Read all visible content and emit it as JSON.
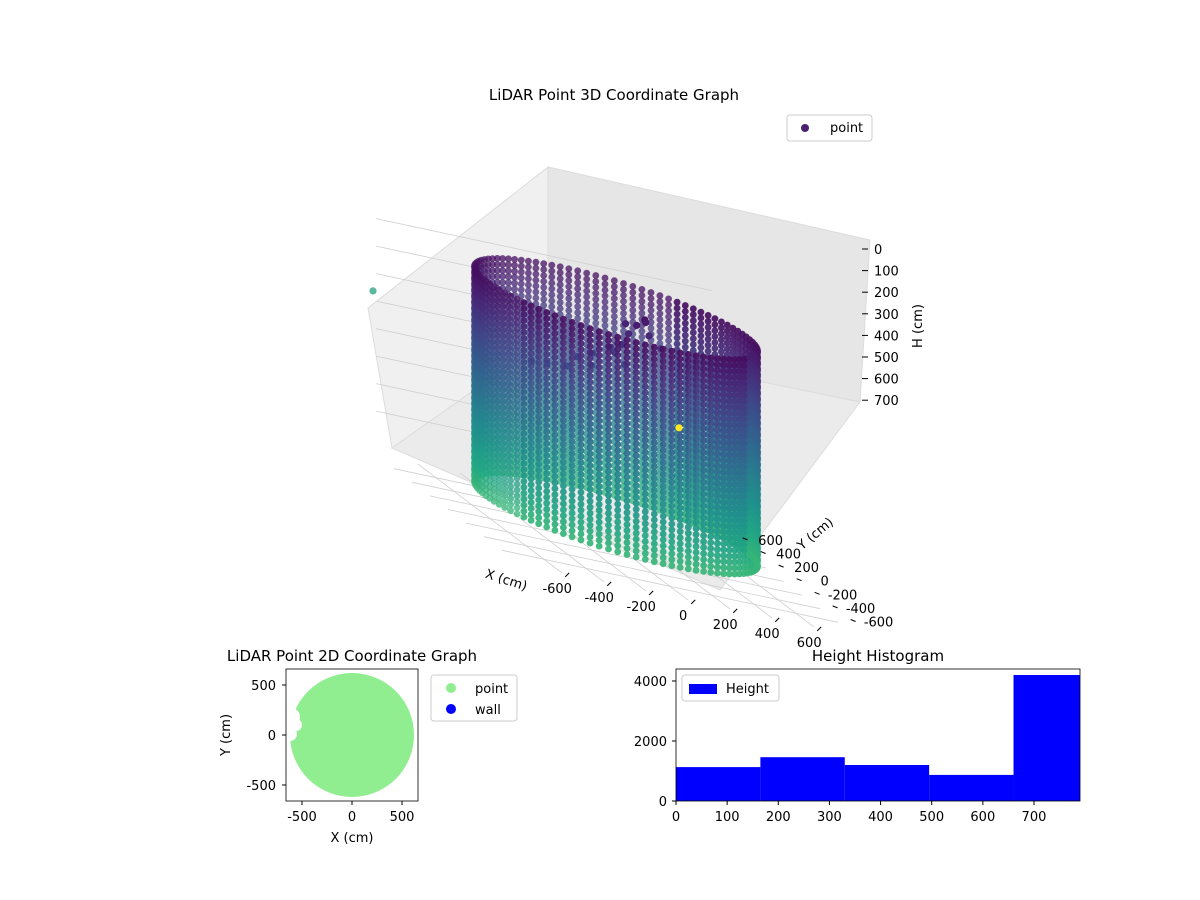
{
  "chart_data": [
    {
      "type": "scatter",
      "projection": "3d",
      "title": "LiDAR Point 3D Coordinate Graph",
      "xlabel": "X (cm)",
      "ylabel": "Y (cm)",
      "zlabel": "H (cm)",
      "xticks": [
        "-600",
        "-400",
        "-200",
        "0",
        "200",
        "400",
        "600"
      ],
      "yticks": [
        "-600",
        "-400",
        "-200",
        "0",
        "200",
        "400",
        "600"
      ],
      "zticks": [
        "0",
        "100",
        "200",
        "300",
        "400",
        "500",
        "600",
        "700"
      ],
      "zlim": [
        0,
        780
      ],
      "z_inverted": true,
      "grid": true,
      "legend": {
        "position": "top-right",
        "entries": [
          {
            "label": "point",
            "color": "#482173"
          }
        ]
      },
      "colormap": "viridis",
      "series": [
        {
          "name": "point",
          "shape": "cylinder",
          "center": [
            0,
            0
          ],
          "radius_cm": 620,
          "height_range_cm": [
            0,
            780
          ],
          "outliers": [
            {
              "x": -1050,
              "y": 250,
              "h": 560,
              "color": "#5ab8a0"
            },
            {
              "x": -60,
              "y": -840,
              "h": 780,
              "color": "#fde725"
            }
          ]
        }
      ]
    },
    {
      "type": "scatter",
      "title": "LiDAR Point 2D Coordinate Graph",
      "xlabel": "X (cm)",
      "ylabel": "Y (cm)",
      "xlim": [
        -660,
        660
      ],
      "ylim": [
        -660,
        660
      ],
      "xticks": [
        "-500",
        "0",
        "500"
      ],
      "yticks": [
        "-500",
        "0",
        "500"
      ],
      "legend": {
        "position": "outside-right",
        "entries": [
          {
            "label": "point",
            "color": "#90ee90"
          },
          {
            "label": "wall",
            "color": "#0000ff"
          }
        ]
      },
      "series": [
        {
          "name": "point",
          "color": "#90ee90",
          "shape": "disc",
          "center": [
            0,
            0
          ],
          "radius": 620
        },
        {
          "name": "wall",
          "color": "#0000ff",
          "points": []
        }
      ]
    },
    {
      "type": "bar",
      "subtype": "histogram",
      "title": "Height Histogram",
      "xlim": [
        0,
        790
      ],
      "ylim": [
        0,
        4400
      ],
      "xticks": [
        "0",
        "100",
        "200",
        "300",
        "400",
        "500",
        "600",
        "700"
      ],
      "yticks": [
        "0",
        "2000",
        "4000"
      ],
      "legend": {
        "position": "top-left",
        "entries": [
          {
            "label": "Height",
            "color": "#0000ff"
          }
        ]
      },
      "series": [
        {
          "name": "Height",
          "color": "#0000ff",
          "bins": [
            0,
            165,
            330,
            495,
            660,
            790
          ],
          "values": [
            1130,
            1460,
            1200,
            870,
            4200
          ]
        }
      ]
    }
  ]
}
